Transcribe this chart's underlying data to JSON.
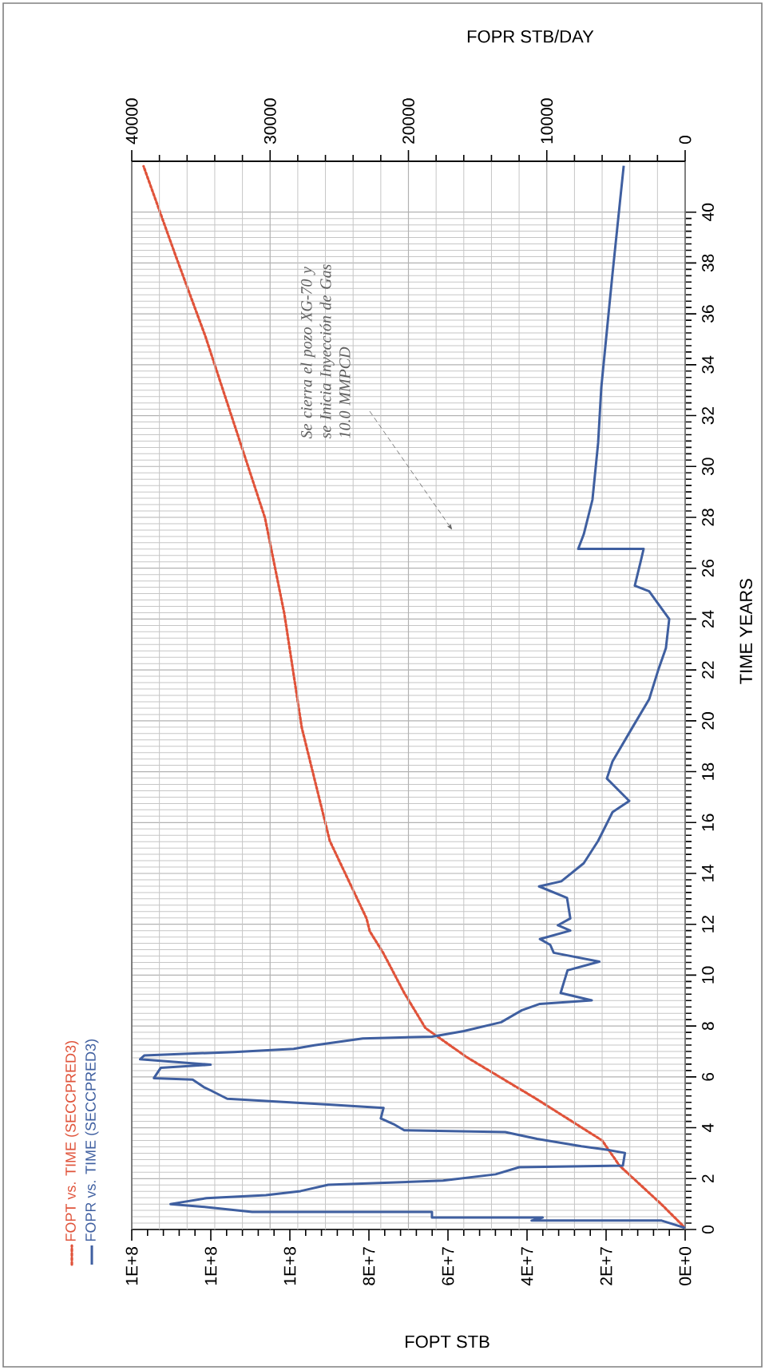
{
  "chart_data": {
    "type": "line",
    "legend": "bottom left",
    "grid": true,
    "xlabel": "FOPT  STB",
    "x2label": "FOPR  STB/DAY",
    "ylabel": "TIME  YEARS",
    "ylim": [
      0,
      42
    ],
    "yticks": [
      0,
      2,
      4,
      6,
      8,
      10,
      12,
      14,
      16,
      18,
      20,
      22,
      24,
      26,
      28,
      30,
      32,
      34,
      36,
      38,
      40
    ],
    "xlim": [
      140000000,
      0
    ],
    "xticks": [
      {
        "value": 0,
        "label": "0E+0"
      },
      {
        "value": 20000000,
        "label": "2E+7"
      },
      {
        "value": 40000000,
        "label": "4E+7"
      },
      {
        "value": 60000000,
        "label": "6E+7"
      },
      {
        "value": 80000000,
        "label": "8E+7"
      },
      {
        "value": 100000000,
        "label": "1E+8"
      },
      {
        "value": 120000000,
        "label": "1E+8"
      },
      {
        "value": 140000000,
        "label": "1E+8"
      }
    ],
    "x2lim": [
      40000,
      0
    ],
    "x2ticks": [
      0,
      10000,
      20000,
      30000,
      40000
    ],
    "annotations": [
      "Se cierra el pozo XG-70 y se Inicia Inyección de Gas 10.0 MMPCD"
    ],
    "series": [
      {
        "name": "FOPT vs. TIME (SECCPRED3)",
        "color": "#e0533a",
        "line_style": "dotted",
        "values": [
          0.06,
          1.0,
          2.51,
          3.5,
          5.13,
          6.77,
          7.92,
          9.31,
          10.88,
          11.73,
          12.23,
          15.28,
          19.74,
          24.21,
          27.98,
          35.13,
          38.33,
          41.8
        ],
        "x": [
          0,
          6060000,
          16600000,
          21000000,
          37600000,
          55200000,
          65700000,
          71100000,
          76400000,
          79800000,
          80600000,
          89900000,
          97000000,
          101400000,
          106300000,
          121400000,
          129000000,
          137000000
        ]
      },
      {
        "name": "FOPR vs. TIME (SECCPRED3)",
        "color": "#3f5fa0",
        "line_style": "solid",
        "axis": "x2",
        "values": [
          0.06,
          0.35,
          0.35,
          0.47,
          0.47,
          0.69,
          0.69,
          0.88,
          1.0,
          1.23,
          1.35,
          1.51,
          1.76,
          1.92,
          2.17,
          2.45,
          2.51,
          3.01,
          3.14,
          3.27,
          3.56,
          3.83,
          3.9,
          4.15,
          4.37,
          4.78,
          4.91,
          5.14,
          5.47,
          5.6,
          5.89,
          5.95,
          6.36,
          6.48,
          6.69,
          6.84,
          6.98,
          7.1,
          7.24,
          7.51,
          7.58,
          7.8,
          8.15,
          8.62,
          8.87,
          9.01,
          9.3,
          10.19,
          10.53,
          10.88,
          11.19,
          11.42,
          11.75,
          11.96,
          12.23,
          13.04,
          13.49,
          13.69,
          14.4,
          15.28,
          16.41,
          16.85,
          17.73,
          18.4,
          19.74,
          20.85,
          21.97,
          22.86,
          24.0,
          25.09,
          25.31,
          26.23,
          26.76,
          26.76,
          27.33,
          28.69,
          30.92,
          33.11,
          37.58,
          41.82
        ],
        "x": [
          0,
          1700,
          11100,
          10300,
          18300,
          18300,
          31300,
          34600,
          37200,
          34600,
          30300,
          27800,
          25800,
          17500,
          13700,
          12000,
          4500,
          4350,
          5700,
          7500,
          10700,
          13000,
          20300,
          21100,
          22000,
          21800,
          25800,
          33100,
          34300,
          34800,
          35600,
          38400,
          37900,
          34300,
          39400,
          39100,
          32600,
          28300,
          26800,
          23300,
          18300,
          16000,
          13300,
          11800,
          10500,
          6750,
          9000,
          8500,
          6200,
          9500,
          9750,
          10500,
          8300,
          9200,
          8300,
          8540,
          10560,
          8950,
          7330,
          6290,
          5250,
          4040,
          5660,
          5250,
          3810,
          2600,
          1960,
          1390,
          1150,
          2600,
          3640,
          3230,
          3000,
          7730,
          7330,
          6700,
          6290,
          6060,
          5250,
          4440
        ]
      }
    ]
  }
}
